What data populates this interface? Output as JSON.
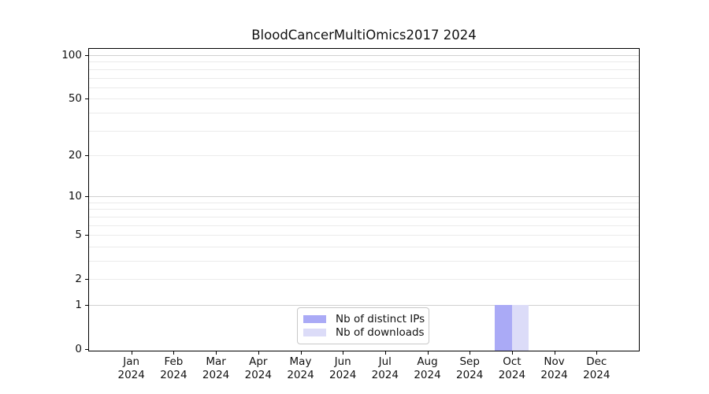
{
  "chart_data": {
    "type": "bar",
    "title": "BloodCancerMultiOmics2017 2024",
    "categories": [
      "Jan",
      "Feb",
      "Mar",
      "Apr",
      "May",
      "Jun",
      "Jul",
      "Aug",
      "Sep",
      "Oct",
      "Nov",
      "Dec"
    ],
    "category_year": "2024",
    "series": [
      {
        "name": "Nb of distinct IPs",
        "color": "#aaaaf6",
        "values": [
          0,
          0,
          0,
          0,
          0,
          0,
          0,
          0,
          0,
          1,
          0,
          0
        ]
      },
      {
        "name": "Nb of downloads",
        "color": "#dcdcf8",
        "values": [
          0,
          0,
          0,
          0,
          0,
          0,
          0,
          0,
          0,
          1,
          0,
          0
        ]
      }
    ],
    "xlabel": "",
    "ylabel": "",
    "y_scale": "log1p",
    "ylim": [
      0,
      100
    ],
    "y_ticks": [
      0,
      1,
      2,
      5,
      10,
      20,
      50,
      100
    ],
    "grid": {
      "orientation": "horizontal",
      "major_values": [
        1,
        10,
        100
      ],
      "minor_values": [
        2,
        3,
        4,
        5,
        6,
        7,
        8,
        9,
        20,
        30,
        40,
        50,
        60,
        70,
        80,
        90
      ],
      "major_color": "#d0d0d0",
      "minor_color": "#ebebeb"
    },
    "legend": {
      "position": "inside lower-center",
      "items": [
        "Nb of distinct IPs",
        "Nb of downloads"
      ]
    },
    "axis_color": "#000000"
  }
}
